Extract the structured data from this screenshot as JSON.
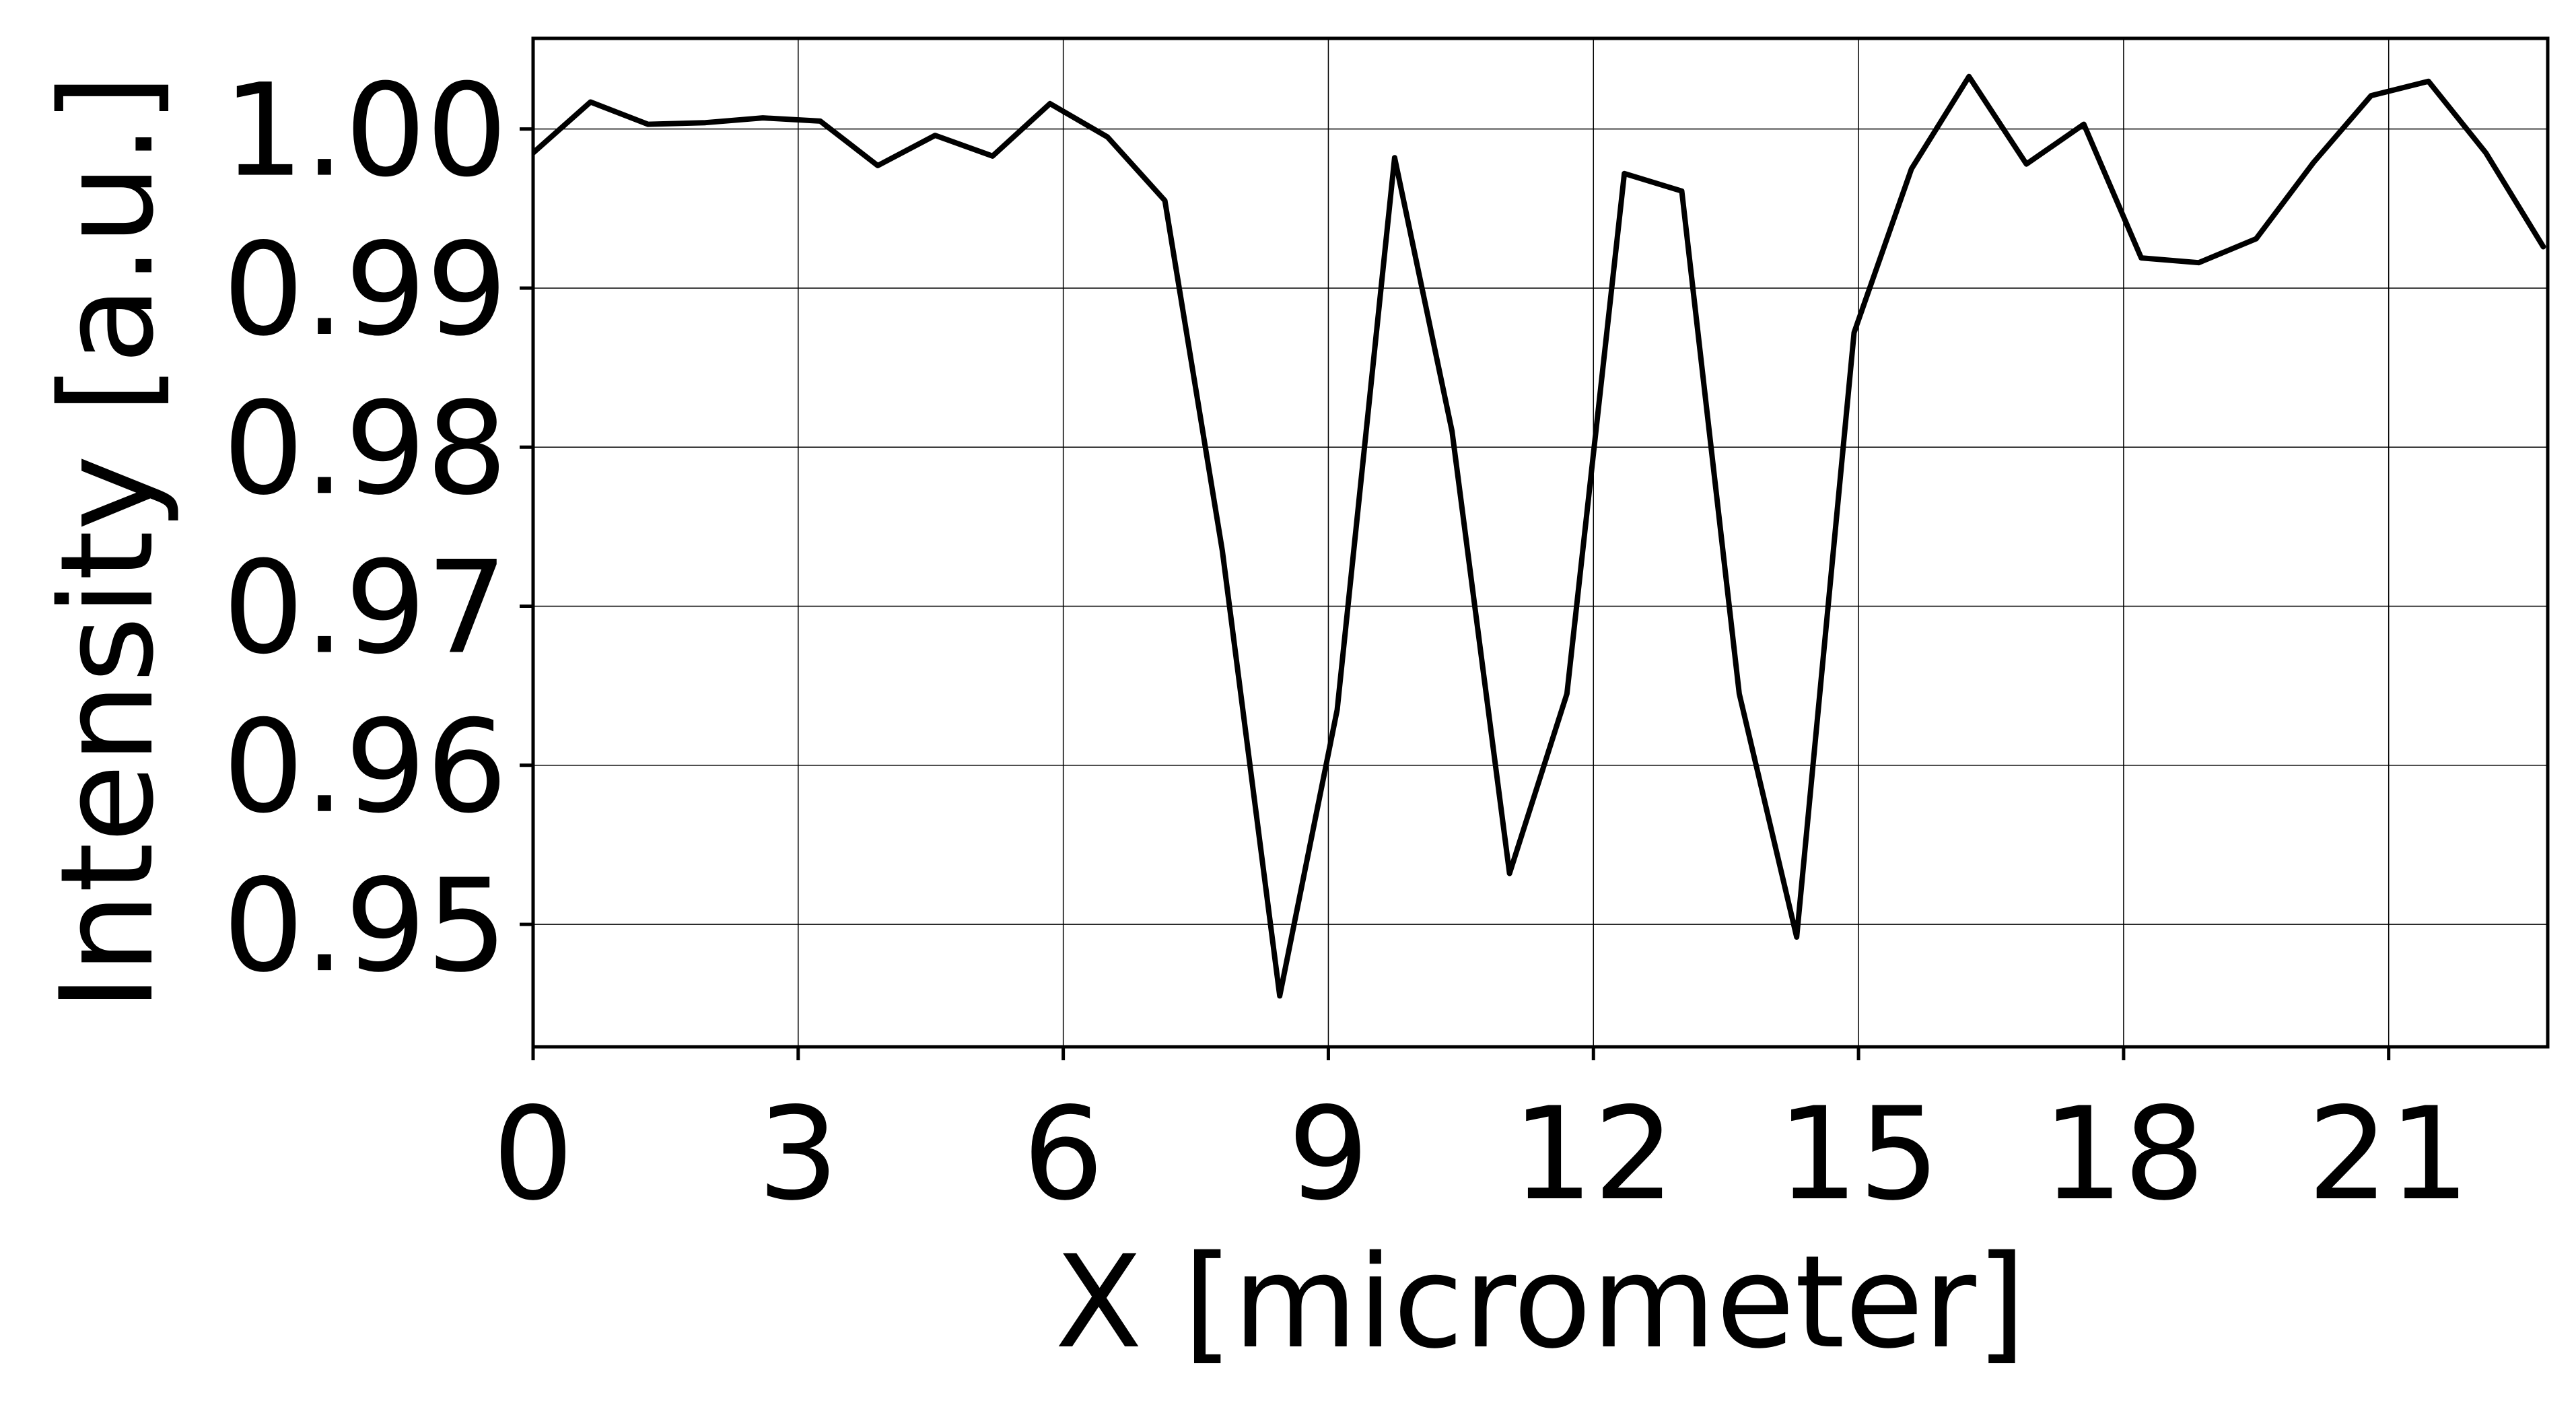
{
  "chart_data": {
    "type": "line",
    "title": "",
    "xlabel": "X [micrometer]",
    "ylabel": "Intensity [a.u.]",
    "xlim": [
      0,
      22.8
    ],
    "ylim": [
      0.9423,
      1.0057
    ],
    "xticks": [
      0,
      3,
      6,
      9,
      12,
      15,
      18,
      21
    ],
    "xtick_labels": [
      "0",
      "3",
      "6",
      "9",
      "12",
      "15",
      "18",
      "21"
    ],
    "yticks": [
      0.95,
      0.96,
      0.97,
      0.98,
      0.99,
      1.0
    ],
    "ytick_labels": [
      "0.95",
      "0.96",
      "0.97",
      "0.98",
      "0.99",
      "1.00"
    ],
    "grid": true,
    "legend": "none",
    "series": [
      {
        "color": "#000000",
        "x": [
          0,
          0.65,
          1.3,
          1.95,
          2.6,
          3.25,
          3.9,
          4.55,
          5.2,
          5.85,
          6.5,
          7.15,
          7.8,
          8.45,
          9.1,
          9.75,
          10.4,
          11.05,
          11.7,
          12.35,
          13.0,
          13.65,
          14.3,
          14.95,
          15.6,
          16.25,
          16.9,
          17.55,
          18.2,
          18.85,
          19.5,
          20.15,
          20.8,
          21.45,
          22.1,
          22.75
        ],
        "y": [
          0.9985,
          1.0017,
          1.0003,
          1.0004,
          1.0007,
          1.0005,
          0.9977,
          0.9996,
          0.9983,
          1.0016,
          0.9995,
          0.9955,
          0.9735,
          0.9455,
          0.9635,
          0.9982,
          0.981,
          0.9532,
          0.9645,
          0.9972,
          0.9961,
          0.9645,
          0.9492,
          0.9872,
          0.9975,
          1.0033,
          0.9978,
          1.0003,
          0.9919,
          0.9916,
          0.9931,
          0.9979,
          1.0021,
          1.003,
          0.9985,
          0.9926
        ]
      }
    ]
  }
}
